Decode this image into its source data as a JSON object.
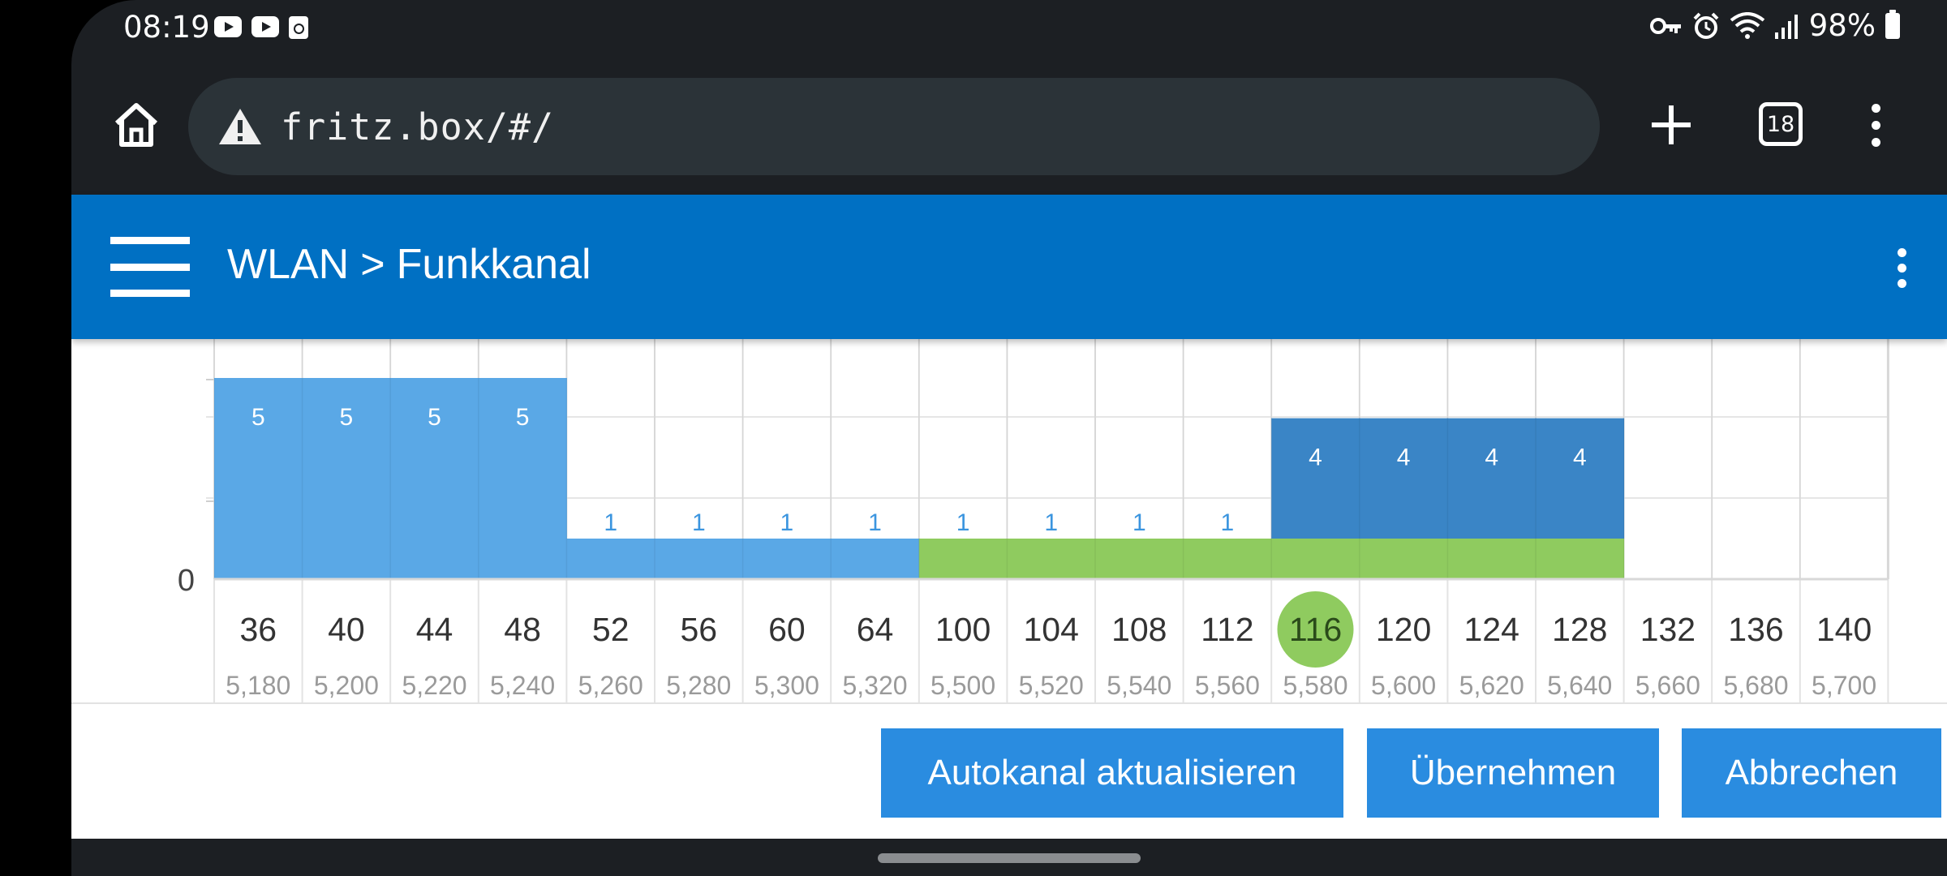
{
  "status_bar": {
    "time": "08:19",
    "battery": "98%",
    "left_icons": [
      "youtube-icon",
      "youtube-icon",
      "notes-icon"
    ],
    "right_icons": [
      "vpn-key-icon",
      "alarm-icon",
      "wifi-icon",
      "signal-icon",
      "battery-icon"
    ]
  },
  "browser": {
    "url": "fritz.box/#/",
    "tab_count": "18"
  },
  "header": {
    "breadcrumb_parent": "WLAN",
    "breadcrumb_sep": ">",
    "breadcrumb_current": "Funkkanal"
  },
  "chart_data": {
    "type": "bar",
    "channels": [
      "36",
      "40",
      "44",
      "48",
      "52",
      "56",
      "60",
      "64",
      "100",
      "104",
      "108",
      "112",
      "116",
      "120",
      "124",
      "128",
      "132",
      "136",
      "140"
    ],
    "frequencies": [
      "5,180",
      "5,200",
      "5,220",
      "5,240",
      "5,260",
      "5,280",
      "5,300",
      "5,320",
      "5,500",
      "5,520",
      "5,540",
      "5,560",
      "5,580",
      "5,600",
      "5,620",
      "5,640",
      "5,660",
      "5,680",
      "5,700"
    ],
    "selected_channel": "116",
    "y_tick_label": "0",
    "series": [
      {
        "values": [
          5,
          5,
          5,
          5,
          1,
          1,
          1,
          1,
          null,
          null,
          null,
          null,
          null,
          null,
          null,
          null,
          null,
          null,
          null
        ],
        "color": "#5aa8e6",
        "label_color_tall": "#ffffff",
        "label_color_short": "#3b95df"
      },
      {
        "values": [
          null,
          null,
          null,
          null,
          null,
          null,
          null,
          null,
          1,
          1,
          1,
          1,
          null,
          null,
          null,
          null,
          null,
          null,
          null
        ],
        "color": "#8fcb5f",
        "label_color": "#3b95df"
      },
      {
        "values": [
          null,
          null,
          null,
          null,
          null,
          null,
          null,
          null,
          null,
          null,
          null,
          null,
          4,
          4,
          4,
          4,
          null,
          null,
          null
        ],
        "color": "#3a85c6",
        "label_color": "#ffffff"
      }
    ],
    "base_band": {
      "blue_range": [
        "36",
        "64"
      ],
      "green_range": [
        "100",
        "128"
      ],
      "blue_color": "#5aa8e6",
      "green_color": "#8fcb5f"
    },
    "grid": true,
    "ylim": [
      0,
      6
    ]
  },
  "actions": {
    "autokanal": "Autokanal aktualisieren",
    "uebernehmen": "Übernehmen",
    "abbrechen": "Abbrechen"
  }
}
